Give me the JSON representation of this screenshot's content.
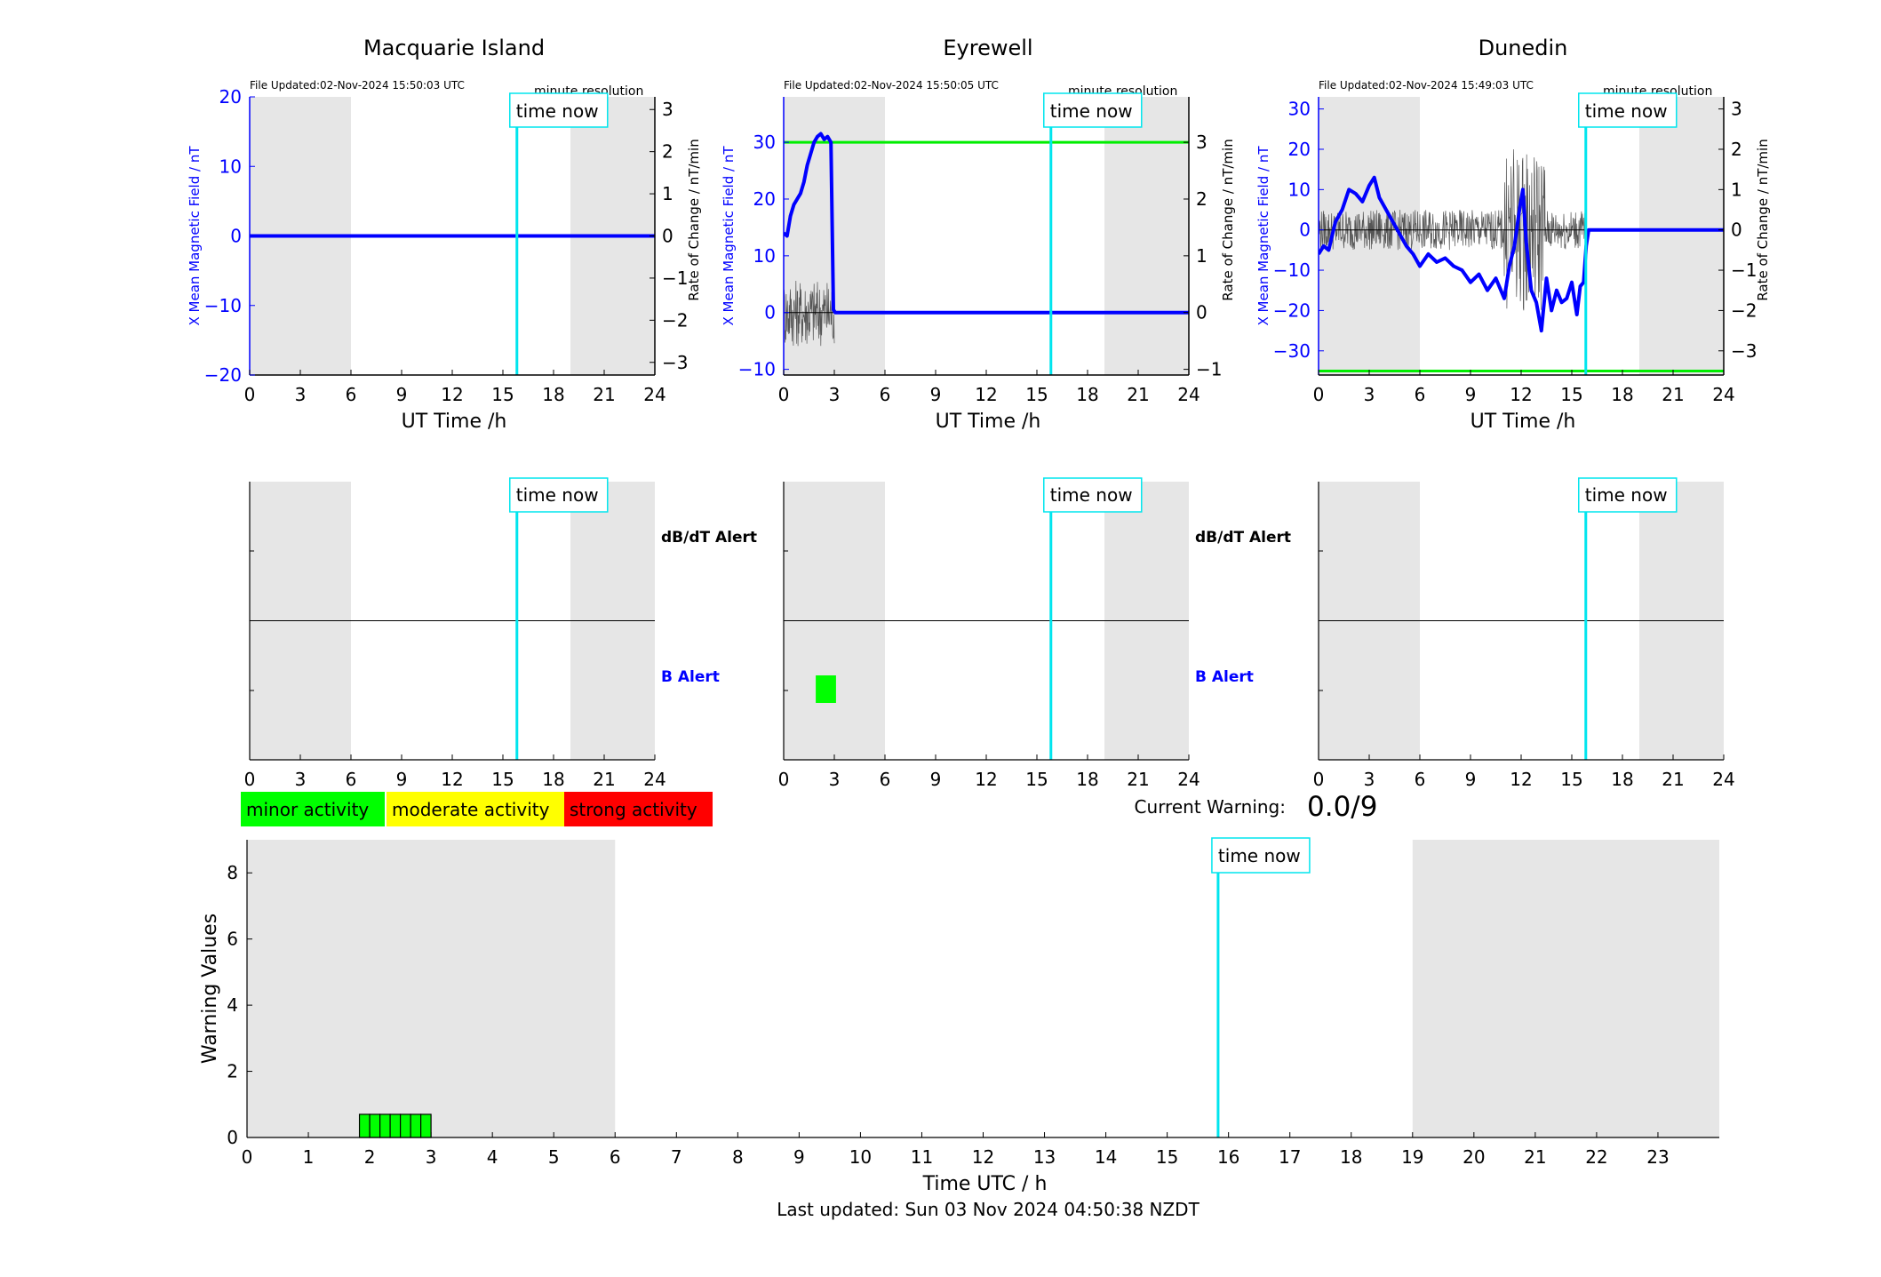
{
  "colors": {
    "night_shade": "#e6e6e6",
    "mean_field": "#0000ff",
    "rate_of_change": "#555555",
    "threshold": "#00ee00",
    "time_now": "#00e5ee",
    "minor": "#00ff00",
    "moderate": "#ffff00",
    "strong": "#ff0000"
  },
  "labels": {
    "time_now": "time now",
    "minute_resolution": "minute resolution",
    "dbdt_alert": "dB/dT Alert",
    "b_alert": "B Alert",
    "current_warning_label": "Current Warning:",
    "current_warning_value": "0.0/9",
    "last_updated": "Last updated: Sun 03 Nov 2024 04:50:38 NZDT"
  },
  "legend": [
    "minor activity",
    "moderate activity",
    "strong activity"
  ],
  "chart_data": [
    {
      "type": "line",
      "title": "Macquarie Island",
      "file_updated": "File Updated:02-Nov-2024 15:50:03 UTC",
      "xlabel": "UT Time /h",
      "ylabel": "X Mean Magnetic Field / nT",
      "y2label": "Rate of Change / nT/min",
      "xlim": [
        0,
        24
      ],
      "xticks": [
        0,
        3,
        6,
        9,
        12,
        15,
        18,
        21,
        24
      ],
      "ylim": [
        -20,
        20
      ],
      "yticks": [
        -20,
        -10,
        0,
        10,
        20
      ],
      "y2lim": [
        -3.3,
        3.3
      ],
      "y2ticks": [
        -3,
        -2,
        -1,
        0,
        1,
        2,
        3
      ],
      "night_shading": [
        [
          0,
          6
        ],
        [
          19,
          24
        ]
      ],
      "time_now": 15.83,
      "threshold": null,
      "series": [
        {
          "name": "X Mean Magnetic Field",
          "axis": "left",
          "x": [
            0,
            24
          ],
          "y": [
            0,
            0
          ]
        }
      ],
      "rate_of_change": {
        "noise_until": 0,
        "amplitude": 0
      },
      "alerts": {
        "dbdt": [],
        "b": []
      }
    },
    {
      "type": "line",
      "title": "Eyrewell",
      "file_updated": "File Updated:02-Nov-2024 15:50:05 UTC",
      "xlabel": "UT Time /h",
      "ylabel": "X Mean Magnetic Field / nT",
      "y2label": "Rate of Change / nT/min",
      "xlim": [
        0,
        24
      ],
      "xticks": [
        0,
        3,
        6,
        9,
        12,
        15,
        18,
        21,
        24
      ],
      "ylim": [
        -11,
        38
      ],
      "yticks": [
        -10,
        0,
        10,
        20,
        30
      ],
      "y2lim": [
        -1.1,
        3.8
      ],
      "y2ticks": [
        -1,
        0,
        1,
        2,
        3
      ],
      "night_shading": [
        [
          0,
          6
        ],
        [
          19,
          24
        ]
      ],
      "time_now": 15.83,
      "threshold": 30,
      "series": [
        {
          "name": "X Mean Magnetic Field",
          "axis": "left",
          "x": [
            0,
            0.2,
            0.4,
            0.6,
            0.8,
            1.0,
            1.2,
            1.4,
            1.6,
            1.8,
            2.0,
            2.2,
            2.4,
            2.6,
            2.8,
            2.95,
            3.05,
            24
          ],
          "y": [
            14,
            13.5,
            17,
            19,
            20,
            21,
            23,
            26,
            28,
            30,
            31,
            31.5,
            30.5,
            31,
            30,
            0.5,
            0,
            0
          ]
        }
      ],
      "rate_of_change": {
        "noise_until": 3.0,
        "amplitude": 0.6
      },
      "alerts": {
        "dbdt": [],
        "b": [
          [
            1.9,
            3.1
          ]
        ]
      }
    },
    {
      "type": "line",
      "title": "Dunedin",
      "file_updated": "File Updated:02-Nov-2024 15:49:03 UTC",
      "xlabel": "UT Time /h",
      "ylabel": "X Mean Magnetic Field / nT",
      "y2label": "Rate of Change / nT/min",
      "xlim": [
        0,
        24
      ],
      "xticks": [
        0,
        3,
        6,
        9,
        12,
        15,
        18,
        21,
        24
      ],
      "ylim": [
        -36,
        33
      ],
      "yticks": [
        -30,
        -20,
        -10,
        0,
        10,
        20,
        30
      ],
      "y2lim": [
        -3.6,
        3.3
      ],
      "y2ticks": [
        -3,
        -2,
        -1,
        0,
        1,
        2,
        3
      ],
      "night_shading": [
        [
          0,
          6
        ],
        [
          19,
          24
        ]
      ],
      "time_now": 15.83,
      "threshold": -35,
      "series": [
        {
          "name": "X Mean Magnetic Field",
          "axis": "left",
          "x": [
            0,
            0.3,
            0.6,
            1.0,
            1.4,
            1.8,
            2.2,
            2.6,
            3.0,
            3.3,
            3.6,
            4.0,
            4.4,
            4.8,
            5.2,
            5.6,
            6.0,
            6.5,
            7.0,
            7.5,
            8.0,
            8.5,
            9.0,
            9.5,
            10.0,
            10.5,
            11.0,
            11.3,
            11.6,
            11.9,
            12.1,
            12.3,
            12.6,
            12.9,
            13.2,
            13.5,
            13.8,
            14.1,
            14.4,
            14.7,
            15.0,
            15.3,
            15.5,
            15.7,
            15.85,
            16.0,
            24
          ],
          "y": [
            -6,
            -4,
            -5,
            2,
            5,
            10,
            9,
            7,
            11,
            13,
            8,
            5,
            2,
            -1,
            -4,
            -6,
            -9,
            -6,
            -8,
            -7,
            -9,
            -10,
            -13,
            -11,
            -15,
            -12,
            -17,
            -9,
            -4,
            5,
            10,
            -3,
            -15,
            -18,
            -25,
            -12,
            -20,
            -15,
            -18,
            -17,
            -13,
            -21,
            -14,
            -13,
            -4,
            0,
            0
          ]
        }
      ],
      "rate_of_change": {
        "noise_until": 15.9,
        "amplitude": 0.5
      },
      "alerts": {
        "dbdt": [],
        "b": []
      }
    },
    {
      "type": "bar",
      "title": "",
      "xlabel": "Time UTC / h",
      "ylabel": "Warning Values",
      "xlim": [
        0,
        24
      ],
      "xticks": [
        0,
        1,
        2,
        3,
        4,
        5,
        6,
        7,
        8,
        9,
        10,
        11,
        12,
        13,
        14,
        15,
        16,
        17,
        18,
        19,
        20,
        21,
        22,
        23
      ],
      "ylim": [
        0,
        9
      ],
      "yticks": [
        0,
        2,
        4,
        6,
        8
      ],
      "night_shading": [
        [
          0,
          6
        ],
        [
          19,
          24
        ]
      ],
      "time_now": 15.83,
      "bar_width_h": 0.1667,
      "bars": [
        {
          "x": 1.833,
          "value": 0.7,
          "level": "minor"
        },
        {
          "x": 2.0,
          "value": 0.7,
          "level": "minor"
        },
        {
          "x": 2.167,
          "value": 0.7,
          "level": "minor"
        },
        {
          "x": 2.333,
          "value": 0.7,
          "level": "minor"
        },
        {
          "x": 2.5,
          "value": 0.7,
          "level": "minor"
        },
        {
          "x": 2.667,
          "value": 0.7,
          "level": "minor"
        },
        {
          "x": 2.833,
          "value": 0.7,
          "level": "minor"
        }
      ]
    }
  ]
}
